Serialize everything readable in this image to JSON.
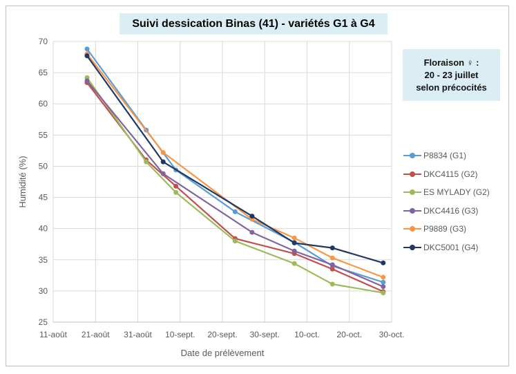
{
  "chart_data": {
    "type": "line",
    "title": "Suivi dessication Binas (41) - variétés G1 à G4",
    "xlabel": "Date de prélèvement",
    "ylabel": "Humidité (%)",
    "ylim": [
      25,
      70
    ],
    "yticks": [
      "25",
      "30",
      "35",
      "40",
      "45",
      "50",
      "55",
      "60",
      "65",
      "70"
    ],
    "xticks": [
      "11-août",
      "21-août",
      "31-août",
      "10-sept.",
      "20-sept.",
      "30-sept.",
      "10-oct.",
      "20-oct.",
      "30-oct."
    ],
    "grid": true,
    "legend": "right",
    "series": [
      {
        "name": "P8834 (G1)",
        "color": "#5b9bd5",
        "x": [
          "19-août",
          "02-sept.",
          "09-sept.",
          "23-sept.",
          "07-oct.",
          "16-oct.",
          "28-oct."
        ],
        "values": [
          68.8,
          55.8,
          49.4,
          42.7,
          37.8,
          34.0,
          31.4
        ]
      },
      {
        "name": "DKC4115 (G2)",
        "color": "#c0504d",
        "x": [
          "19-août",
          "02-sept.",
          "09-sept.",
          "23-sept.",
          "07-oct.",
          "16-oct.",
          "28-oct."
        ],
        "values": [
          63.4,
          51.0,
          46.8,
          38.4,
          36.0,
          33.5,
          29.9
        ]
      },
      {
        "name": "ES MYLADY (G2)",
        "color": "#9bbb59",
        "x": [
          "19-août",
          "02-sept.",
          "09-sept.",
          "23-sept.",
          "07-oct.",
          "16-oct.",
          "28-oct."
        ],
        "values": [
          64.2,
          50.7,
          45.8,
          38.0,
          34.4,
          31.1,
          29.7
        ]
      },
      {
        "name": "DKC4416 (G3)",
        "color": "#8064a2",
        "x": [
          "19-août",
          "06-sept.",
          "27-sept.",
          "07-oct.",
          "16-oct.",
          "28-oct."
        ],
        "values": [
          63.7,
          48.8,
          39.4,
          36.4,
          34.2,
          30.7
        ]
      },
      {
        "name": "P9889 (G3)",
        "color": "#f79646",
        "x": [
          "19-août",
          "06-sept.",
          "27-sept.",
          "07-oct.",
          "16-oct.",
          "28-oct."
        ],
        "values": [
          68.0,
          52.2,
          41.5,
          38.5,
          35.3,
          32.2
        ]
      },
      {
        "name": "DKC5001 (G4)",
        "color": "#1f3864",
        "x": [
          "19-août",
          "06-sept.",
          "27-sept.",
          "07-oct.",
          "16-oct.",
          "28-oct."
        ],
        "values": [
          67.7,
          50.7,
          42.0,
          37.7,
          36.9,
          34.5
        ]
      }
    ],
    "annotation": [
      "Floraison ♀ :",
      "20 - 23 juillet",
      "selon précocités"
    ]
  }
}
